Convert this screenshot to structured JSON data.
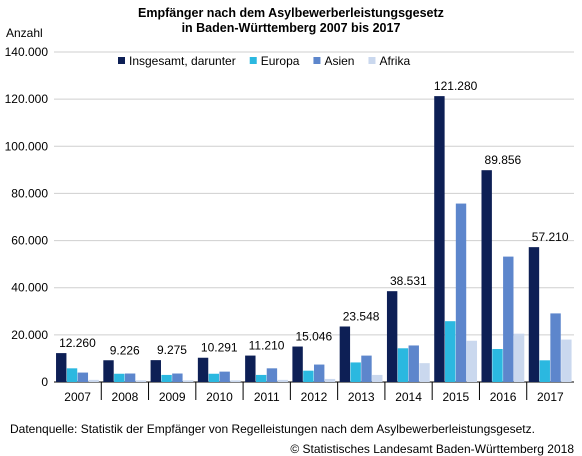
{
  "chart_data": {
    "type": "bar",
    "title_line1": "Empfänger nach dem Asylbewerberleistungsgesetz",
    "title_line2": "in Baden-Württemberg 2007 bis 2017",
    "ylabel": "Anzahl",
    "xlabel": "",
    "ylim": [
      0,
      140000
    ],
    "yticks": [
      0,
      20000,
      40000,
      60000,
      80000,
      100000,
      120000,
      140000
    ],
    "ytick_labels": [
      "0",
      "20.000",
      "40.000",
      "60.000",
      "80.000",
      "100.000",
      "120.000",
      "140.000"
    ],
    "grid": true,
    "legend_position": "top-inside",
    "categories": [
      "2007",
      "2008",
      "2009",
      "2010",
      "2011",
      "2012",
      "2013",
      "2014",
      "2015",
      "2016",
      "2017"
    ],
    "series": [
      {
        "name": "Insgesamt, darunter",
        "color": "#0d1f55",
        "values": [
          12260,
          9226,
          9275,
          10291,
          11210,
          15046,
          23548,
          38531,
          121280,
          89856,
          57210
        ]
      },
      {
        "name": "Europa",
        "color": "#2bb8e0",
        "values": [
          5800,
          3500,
          3000,
          3500,
          3000,
          4800,
          8300,
          14300,
          25800,
          14000,
          9200
        ]
      },
      {
        "name": "Asien",
        "color": "#5d86cc",
        "values": [
          4000,
          3600,
          3600,
          4400,
          5800,
          7400,
          11200,
          15500,
          75700,
          53200,
          29100
        ]
      },
      {
        "name": "Afrika",
        "color": "#cad8ee",
        "values": [
          900,
          700,
          700,
          700,
          900,
          1300,
          3000,
          8000,
          17500,
          20500,
          18000
        ]
      }
    ],
    "data_labels": [
      "12.260",
      "9.226",
      "9.275",
      "10.291",
      "11.210",
      "15.046",
      "23.548",
      "38.531",
      "121.280",
      "89.856",
      "57.210"
    ]
  },
  "footer": {
    "source": "Datenquelle: Statistik der Empfänger von Regelleistungen nach dem Asylbewerberleistungsgesetz.",
    "copyright": "© Statistisches Landesamt Baden-Württemberg 2018"
  }
}
